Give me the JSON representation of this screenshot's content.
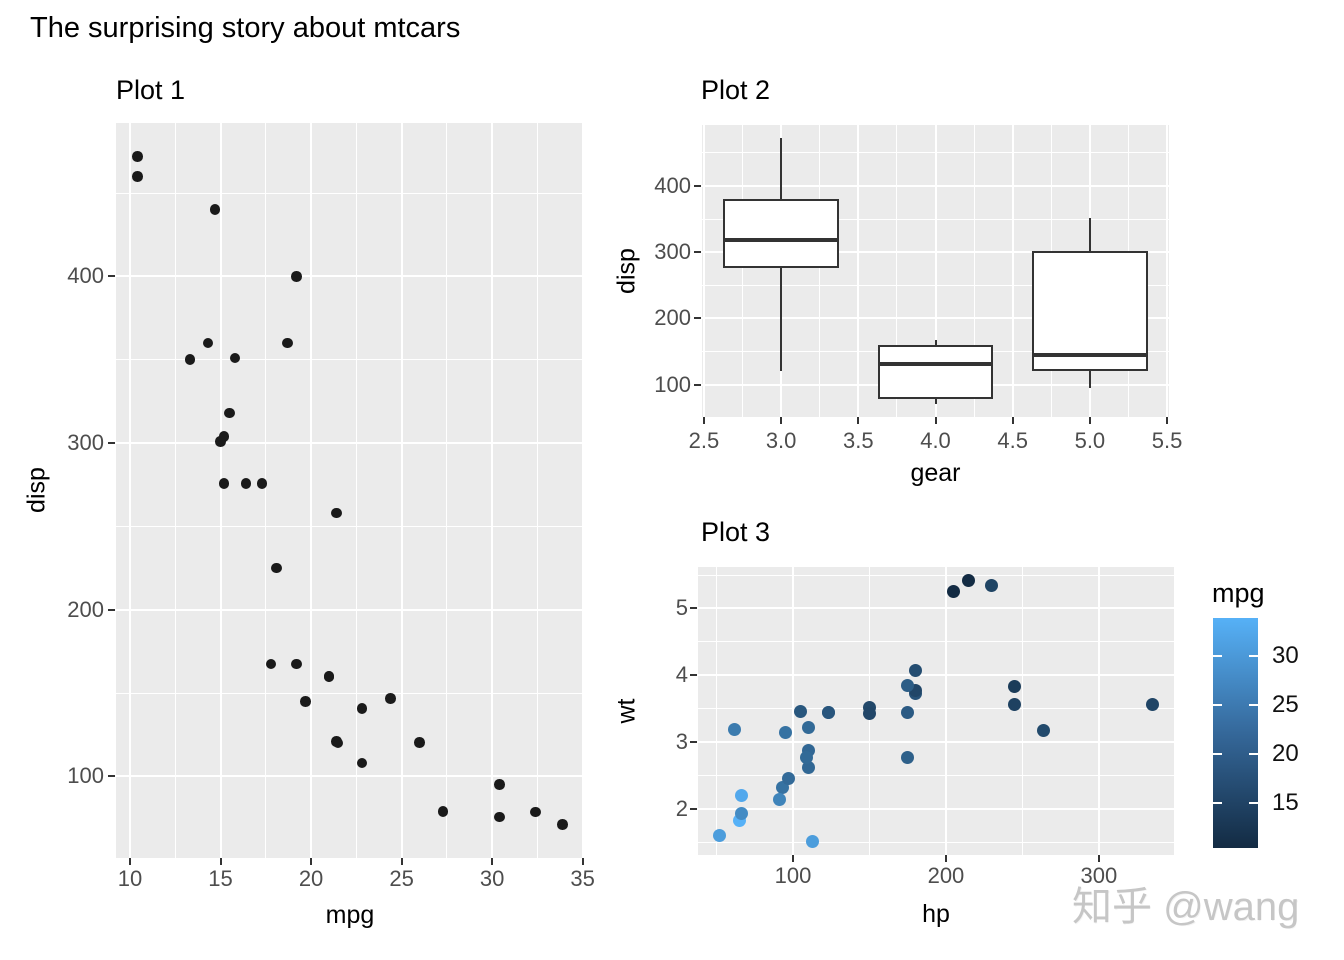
{
  "title": "The surprising story about mtcars",
  "watermark": "知乎 @wang",
  "colors": {
    "panel_bg": "#EBEBEB",
    "grid": "#FFFFFF",
    "tick_label": "#4D4D4D",
    "point": "#1a1a1a",
    "box_border": "#333333",
    "gradient_low": "#132B43",
    "gradient_high": "#56B1F7"
  },
  "chart_data": [
    {
      "id": "plot1",
      "type": "scatter",
      "title": "Plot 1",
      "xlabel": "mpg",
      "ylabel": "disp",
      "xlim": [
        9.225,
        35.075
      ],
      "ylim": [
        51.055,
        492.045
      ],
      "x_ticks": [
        10,
        15,
        20,
        25,
        30,
        35
      ],
      "x_tick_labels": [
        "10",
        "15",
        "20",
        "25",
        "30",
        "35"
      ],
      "x_minor": [
        12.5,
        17.5,
        22.5,
        27.5,
        32.5
      ],
      "y_ticks": [
        100,
        200,
        300,
        400
      ],
      "y_tick_labels": [
        "100",
        "200",
        "300",
        "400"
      ],
      "y_minor": [
        150,
        250,
        350,
        450
      ],
      "grid": true,
      "points": [
        [
          21.0,
          160.0
        ],
        [
          21.0,
          160.0
        ],
        [
          22.8,
          108.0
        ],
        [
          21.4,
          258.0
        ],
        [
          18.7,
          360.0
        ],
        [
          18.1,
          225.0
        ],
        [
          14.3,
          360.0
        ],
        [
          24.4,
          146.7
        ],
        [
          22.8,
          140.8
        ],
        [
          19.2,
          167.6
        ],
        [
          17.8,
          167.6
        ],
        [
          16.4,
          275.8
        ],
        [
          17.3,
          275.8
        ],
        [
          15.2,
          275.8
        ],
        [
          10.4,
          472.0
        ],
        [
          10.4,
          460.0
        ],
        [
          14.7,
          440.0
        ],
        [
          32.4,
          78.7
        ],
        [
          30.4,
          75.7
        ],
        [
          33.9,
          71.1
        ],
        [
          21.5,
          120.1
        ],
        [
          15.5,
          318.0
        ],
        [
          15.2,
          304.0
        ],
        [
          13.3,
          350.0
        ],
        [
          19.2,
          400.0
        ],
        [
          27.3,
          79.0
        ],
        [
          26.0,
          120.3
        ],
        [
          30.4,
          95.1
        ],
        [
          15.8,
          351.0
        ],
        [
          19.7,
          145.0
        ],
        [
          15.0,
          301.0
        ],
        [
          21.4,
          121.0
        ]
      ]
    },
    {
      "id": "plot2",
      "type": "boxplot",
      "title": "Plot 2",
      "xlabel": "gear",
      "ylabel": "disp",
      "xlim": [
        2.4875,
        5.5125
      ],
      "ylim": [
        51.055,
        492.045
      ],
      "x_ticks": [
        2.5,
        3.0,
        3.5,
        4.0,
        4.5,
        5.0,
        5.5
      ],
      "x_tick_labels": [
        "2.5",
        "3.0",
        "3.5",
        "4.0",
        "4.5",
        "5.0",
        "5.5"
      ],
      "x_minor": [
        2.75,
        3.25,
        3.75,
        4.25,
        4.75,
        5.25
      ],
      "y_ticks": [
        100,
        200,
        300,
        400
      ],
      "y_tick_labels": [
        "100",
        "200",
        "300",
        "400"
      ],
      "y_minor": [
        150,
        250,
        350,
        450
      ],
      "grid": true,
      "box_half_width": 0.375,
      "boxes": [
        {
          "x": 3,
          "min": 120.1,
          "q1": 275.8,
          "median": 318.0,
          "q3": 380.0,
          "max": 472.0
        },
        {
          "x": 4,
          "min": 71.1,
          "q1": 78.9,
          "median": 130.9,
          "q3": 160.0,
          "max": 167.6
        },
        {
          "x": 5,
          "min": 95.1,
          "q1": 120.3,
          "median": 145.0,
          "q3": 301.0,
          "max": 351.0
        }
      ]
    },
    {
      "id": "plot3",
      "type": "scatter",
      "title": "Plot 3",
      "xlabel": "hp",
      "ylabel": "wt",
      "xlim": [
        37.85,
        349.15
      ],
      "ylim": [
        1.3174,
        5.6196
      ],
      "x_ticks": [
        100,
        200,
        300
      ],
      "x_tick_labels": [
        "100",
        "200",
        "300"
      ],
      "x_minor": [
        50,
        150,
        250
      ],
      "y_ticks": [
        2,
        3,
        4,
        5
      ],
      "y_tick_labels": [
        "2",
        "3",
        "4",
        "5"
      ],
      "y_minor": [
        1.5,
        2.5,
        3.5,
        4.5,
        5.5
      ],
      "grid": true,
      "color_scale": {
        "low": "#132B43",
        "high": "#56B1F7",
        "domain": [
          10.4,
          33.9
        ]
      },
      "legend": {
        "title": "mpg",
        "position": "right",
        "ticks": [
          30,
          25,
          20,
          15
        ],
        "tick_labels": [
          "30",
          "25",
          "20",
          "15"
        ]
      },
      "points": [
        [
          110,
          2.62,
          21.0
        ],
        [
          110,
          2.875,
          21.0
        ],
        [
          93,
          2.32,
          22.8
        ],
        [
          110,
          3.215,
          21.4
        ],
        [
          175,
          3.44,
          18.7
        ],
        [
          105,
          3.46,
          18.1
        ],
        [
          245,
          3.57,
          14.3
        ],
        [
          62,
          3.19,
          24.4
        ],
        [
          95,
          3.15,
          22.8
        ],
        [
          123,
          3.44,
          19.2
        ],
        [
          123,
          3.44,
          17.8
        ],
        [
          180,
          4.07,
          16.4
        ],
        [
          180,
          3.73,
          17.3
        ],
        [
          180,
          3.78,
          15.2
        ],
        [
          205,
          5.25,
          10.4
        ],
        [
          215,
          5.424,
          10.4
        ],
        [
          230,
          5.345,
          14.7
        ],
        [
          66,
          2.2,
          32.4
        ],
        [
          52,
          1.615,
          30.4
        ],
        [
          65,
          1.835,
          33.9
        ],
        [
          97,
          2.465,
          21.5
        ],
        [
          150,
          3.52,
          15.5
        ],
        [
          150,
          3.435,
          15.2
        ],
        [
          245,
          3.84,
          13.3
        ],
        [
          175,
          3.845,
          19.2
        ],
        [
          66,
          1.935,
          27.3
        ],
        [
          91,
          2.14,
          26.0
        ],
        [
          113,
          1.513,
          30.4
        ],
        [
          264,
          3.17,
          15.8
        ],
        [
          175,
          2.77,
          19.7
        ],
        [
          335,
          3.57,
          15.0
        ],
        [
          109,
          2.78,
          21.4
        ]
      ]
    }
  ]
}
